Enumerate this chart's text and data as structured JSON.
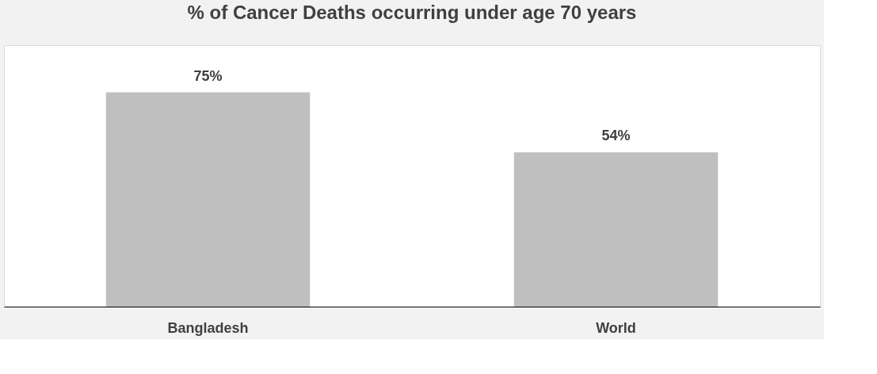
{
  "chart_data": {
    "type": "bar",
    "title": "% of Cancer Deaths occurring under age 70 years",
    "categories": [
      "Bangladesh",
      "World"
    ],
    "values": [
      75,
      54
    ],
    "color": "#bfbfbf",
    "value_labels": [
      "75%",
      "54%"
    ],
    "tick_labels": "x"
  }
}
